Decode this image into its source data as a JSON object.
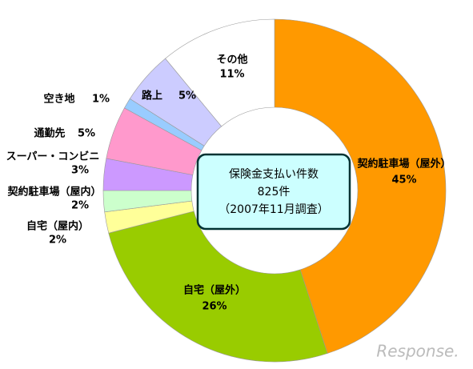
{
  "chart_data": {
    "type": "donut",
    "center_text": [
      "保険金支払い件数",
      "825件",
      "（2007年11月調査）"
    ],
    "categories": [
      "契約駐車場（屋外）",
      "自宅（屋外）",
      "自宅（屋内）",
      "契約駐車場（屋内）",
      "スーパー・コンビニ",
      "通勤先",
      "空き地",
      "路上",
      "その他"
    ],
    "values": [
      45,
      26,
      2,
      2,
      3,
      5,
      1,
      5,
      11
    ],
    "value_labels": [
      "45%",
      "26%",
      "2%",
      "2%",
      "3%",
      "5%",
      "1%",
      "5%",
      "11%"
    ],
    "colors": [
      "#ff9900",
      "#99cc00",
      "#ffff99",
      "#ccffcc",
      "#cc99ff",
      "#ff99cc",
      "#99ccff",
      "#ccccff",
      "#ffffff"
    ]
  },
  "watermark": "Response."
}
